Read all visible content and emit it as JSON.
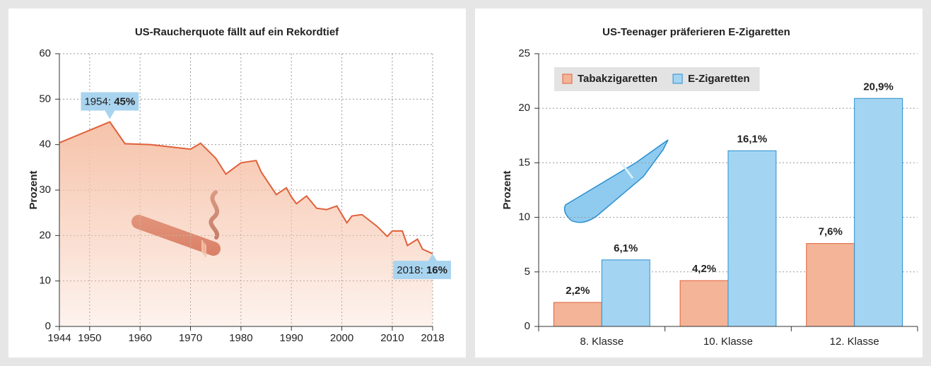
{
  "chart_data": [
    {
      "type": "line",
      "title": "US-Raucherquote fällt auf ein Rekordtief",
      "ylabel": "Prozent",
      "x": [
        1944,
        1954,
        1957,
        1962,
        1970,
        1972,
        1975,
        1977,
        1980,
        1983,
        1984,
        1987,
        1989,
        1990,
        1991,
        1993,
        1995,
        1997,
        1999,
        2001,
        2002,
        2004,
        2007,
        2009,
        2010,
        2012,
        2013,
        2015,
        2016,
        2018
      ],
      "series": [
        {
          "color": "#e0603a",
          "fill": "#f6c3aa",
          "values": [
            40.4,
            45,
            40.2,
            40,
            39,
            40.3,
            37,
            33.5,
            36,
            36.5,
            34,
            29,
            30.5,
            28.5,
            27,
            28.7,
            26,
            25.7,
            26.5,
            22.8,
            24.3,
            24.6,
            22,
            19.8,
            21,
            21,
            17.8,
            19.2,
            17,
            16
          ]
        }
      ],
      "xlim": [
        1944,
        2018
      ],
      "xticks": [
        1944,
        1950,
        1960,
        1970,
        1980,
        1990,
        2000,
        2010,
        2018
      ],
      "ylim": [
        0,
        60
      ],
      "yticks": [
        0,
        10,
        20,
        30,
        40,
        50,
        60
      ],
      "grid": "both",
      "annotations": [
        {
          "x": 1954,
          "y": 45,
          "label": "1954: ",
          "value_label": "45%"
        },
        {
          "x": 2018,
          "y": 16,
          "label": "2018: ",
          "value_label": "16%"
        }
      ]
    },
    {
      "type": "bar",
      "title": "US-Teenager präferieren E-Zigaretten",
      "ylabel": "Prozent",
      "categories": [
        "8. Klasse",
        "10. Klasse",
        "12. Klasse"
      ],
      "series": [
        {
          "name": "Tabakzigaretten",
          "color": "#f4b497",
          "stroke": "#e0603a",
          "values": [
            2.2,
            4.2,
            7.6
          ],
          "value_labels": [
            "2,2%",
            "4,2%",
            "7,6%"
          ]
        },
        {
          "name": "E-Zigaretten",
          "color": "#a3d5f3",
          "stroke": "#2a8fd0",
          "values": [
            6.1,
            16.1,
            20.9
          ],
          "value_labels": [
            "6,1%",
            "16,1%",
            "20,9%"
          ]
        }
      ],
      "ylim": [
        0,
        25
      ],
      "yticks": [
        0,
        5,
        10,
        15,
        20,
        25
      ],
      "grid": "y",
      "legend": "top-left"
    }
  ]
}
